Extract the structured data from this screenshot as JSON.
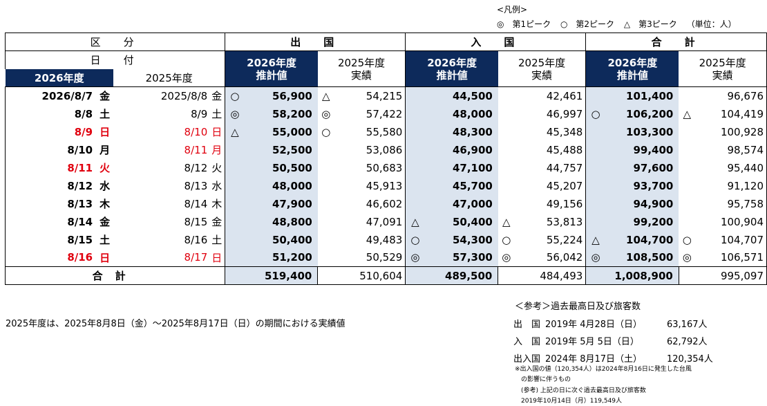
{
  "legend": {
    "title": "<凡例>",
    "peak1": "◎　第1ピーク",
    "peak2": "○　第2ピーク",
    "peak3": "△　第3ピーク",
    "unit": "（単位：人）"
  },
  "header": {
    "kubun": "区　分",
    "hizuke": "日　付",
    "depart": "出　国",
    "arrive": "入　国",
    "total": "合　計",
    "fy2026": "2026年度",
    "fy2025": "2025年度",
    "est_label_1": "2026年度",
    "est_label_2": "推計値",
    "act_label_1": "2025年度",
    "act_label_2": "実績"
  },
  "rows": [
    {
      "d26": "2026/8/7",
      "w26": "金",
      "d25": "2025/8/8",
      "w25": "金",
      "red26": false,
      "red25": false,
      "m_out26": "○",
      "out26": "56,900",
      "m_out25": "△",
      "out25": "54,215",
      "m_in26": "",
      "in26": "44,500",
      "m_in25": "",
      "in25": "42,461",
      "m_tot26": "",
      "tot26": "101,400",
      "m_tot25": "",
      "tot25": "96,676"
    },
    {
      "d26": "8/8",
      "w26": "土",
      "d25": "8/9",
      "w25": "土",
      "red26": false,
      "red25": false,
      "m_out26": "◎",
      "out26": "58,200",
      "m_out25": "◎",
      "out25": "57,422",
      "m_in26": "",
      "in26": "48,000",
      "m_in25": "",
      "in25": "46,997",
      "m_tot26": "○",
      "tot26": "106,200",
      "m_tot25": "△",
      "tot25": "104,419"
    },
    {
      "d26": "8/9",
      "w26": "日",
      "d25": "8/10",
      "w25": "日",
      "red26": true,
      "red25": true,
      "m_out26": "△",
      "out26": "55,000",
      "m_out25": "○",
      "out25": "55,580",
      "m_in26": "",
      "in26": "48,300",
      "m_in25": "",
      "in25": "45,348",
      "m_tot26": "",
      "tot26": "103,300",
      "m_tot25": "",
      "tot25": "100,928"
    },
    {
      "d26": "8/10",
      "w26": "月",
      "d25": "8/11",
      "w25": "月",
      "red26": false,
      "red25": true,
      "m_out26": "",
      "out26": "52,500",
      "m_out25": "",
      "out25": "53,086",
      "m_in26": "",
      "in26": "46,900",
      "m_in25": "",
      "in25": "45,488",
      "m_tot26": "",
      "tot26": "99,400",
      "m_tot25": "",
      "tot25": "98,574"
    },
    {
      "d26": "8/11",
      "w26": "火",
      "d25": "8/12",
      "w25": "火",
      "red26": true,
      "red25": false,
      "m_out26": "",
      "out26": "50,500",
      "m_out25": "",
      "out25": "50,683",
      "m_in26": "",
      "in26": "47,100",
      "m_in25": "",
      "in25": "44,757",
      "m_tot26": "",
      "tot26": "97,600",
      "m_tot25": "",
      "tot25": "95,440"
    },
    {
      "d26": "8/12",
      "w26": "水",
      "d25": "8/13",
      "w25": "水",
      "red26": false,
      "red25": false,
      "m_out26": "",
      "out26": "48,000",
      "m_out25": "",
      "out25": "45,913",
      "m_in26": "",
      "in26": "45,700",
      "m_in25": "",
      "in25": "45,207",
      "m_tot26": "",
      "tot26": "93,700",
      "m_tot25": "",
      "tot25": "91,120"
    },
    {
      "d26": "8/13",
      "w26": "木",
      "d25": "8/14",
      "w25": "木",
      "red26": false,
      "red25": false,
      "m_out26": "",
      "out26": "47,900",
      "m_out25": "",
      "out25": "46,602",
      "m_in26": "",
      "in26": "47,000",
      "m_in25": "",
      "in25": "49,156",
      "m_tot26": "",
      "tot26": "94,900",
      "m_tot25": "",
      "tot25": "95,758"
    },
    {
      "d26": "8/14",
      "w26": "金",
      "d25": "8/15",
      "w25": "金",
      "red26": false,
      "red25": false,
      "m_out26": "",
      "out26": "48,800",
      "m_out25": "",
      "out25": "47,091",
      "m_in26": "△",
      "in26": "50,400",
      "m_in25": "△",
      "in25": "53,813",
      "m_tot26": "",
      "tot26": "99,200",
      "m_tot25": "",
      "tot25": "100,904"
    },
    {
      "d26": "8/15",
      "w26": "土",
      "d25": "8/16",
      "w25": "土",
      "red26": false,
      "red25": false,
      "m_out26": "",
      "out26": "50,400",
      "m_out25": "",
      "out25": "49,483",
      "m_in26": "○",
      "in26": "54,300",
      "m_in25": "○",
      "in25": "55,224",
      "m_tot26": "△",
      "tot26": "104,700",
      "m_tot25": "○",
      "tot25": "104,707"
    },
    {
      "d26": "8/16",
      "w26": "日",
      "d25": "8/17",
      "w25": "日",
      "red26": true,
      "red25": true,
      "m_out26": "",
      "out26": "51,200",
      "m_out25": "",
      "out25": "50,529",
      "m_in26": "◎",
      "in26": "57,300",
      "m_in25": "◎",
      "in25": "56,042",
      "m_tot26": "◎",
      "tot26": "108,500",
      "m_tot25": "◎",
      "tot25": "106,571"
    }
  ],
  "totals": {
    "label": "合計",
    "out26": "519,400",
    "out25": "510,604",
    "in26": "489,500",
    "in25": "484,493",
    "tot26": "1,008,900",
    "tot25": "995,097"
  },
  "note_left": "2025年度は、2025年8月8日（金）～2025年8月17日（日）の期間における実績値",
  "reference": {
    "title": "＜参考＞過去最高日及び旅客数",
    "rows": [
      {
        "label": "出　国",
        "date": "2019年 4月28日（日）",
        "count": "63,167人"
      },
      {
        "label": "入　国",
        "date": "2019年 5月  5日（日）",
        "count": "62,792人"
      },
      {
        "label": "出入国",
        "date": "2024年 8月17日（土）",
        "count": "120,354人"
      }
    ],
    "note_1": "※出入国の値（120,354人）は2024年8月16日に発生した台風",
    "note_2": "の影響に伴うもの",
    "note_3": "(参考) 上記の日に次ぐ過去最高日及び旅客数",
    "note_4": "2019年10月14日（月）119,549人"
  },
  "colors": {
    "navy_header": "#0d2a5b",
    "shade": "#dbe4ef",
    "holiday_red": "#e0000e"
  }
}
